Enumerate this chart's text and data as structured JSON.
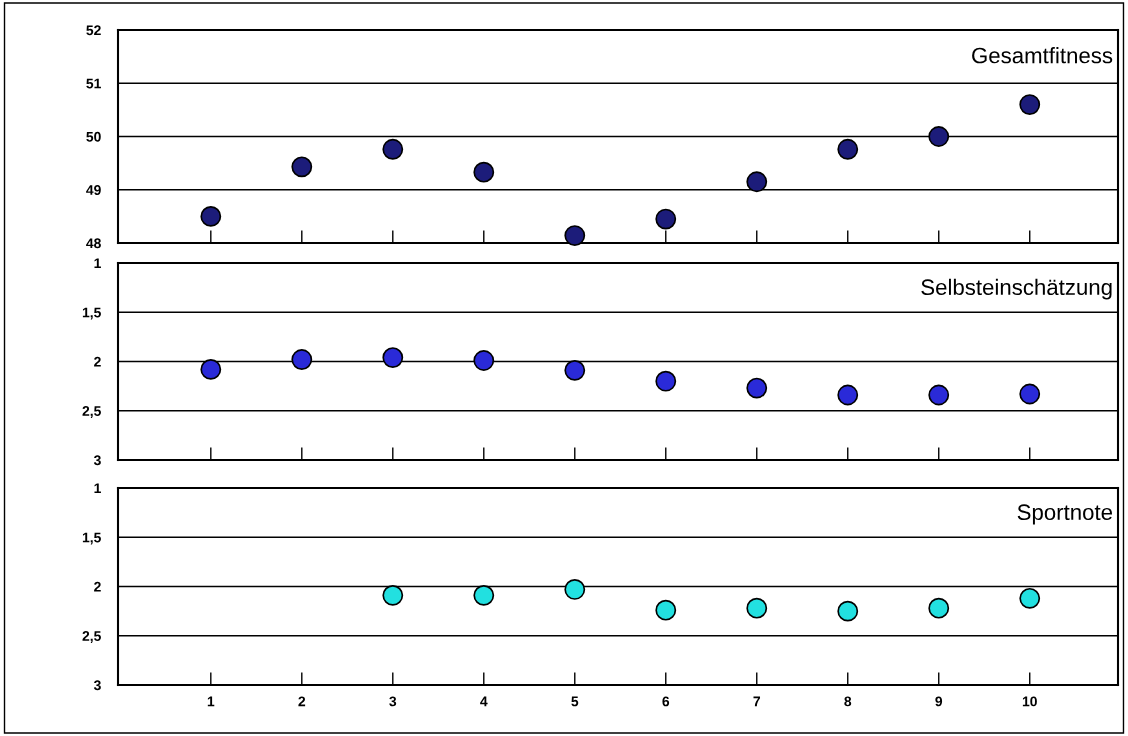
{
  "chart_data": [
    {
      "type": "scatter",
      "title": "Gesamtfitness",
      "categories": [
        "1",
        "2",
        "3",
        "4",
        "5",
        "6",
        "7",
        "8",
        "9",
        "10"
      ],
      "tick_labels": "y",
      "grid": "y",
      "marker": "circle",
      "series": [
        {
          "color": "#1c1c7a",
          "values": [
            48.5,
            49.43,
            49.76,
            49.33,
            48.14,
            48.45,
            49.15,
            49.76,
            50.0,
            50.6
          ]
        }
      ],
      "ylim": [
        48,
        52
      ],
      "yticks": [
        48,
        49,
        50,
        51,
        52
      ]
    },
    {
      "type": "scatter",
      "title": "Selbsteinschätzung",
      "categories": [
        "1",
        "2",
        "3",
        "4",
        "5",
        "6",
        "7",
        "8",
        "9",
        "10"
      ],
      "tick_labels": "y",
      "grid": "y",
      "marker": "circle",
      "series": [
        {
          "color": "#2a2ad8",
          "values": [
            2.08,
            1.98,
            1.96,
            1.99,
            2.09,
            2.2,
            2.27,
            2.34,
            2.34,
            2.33
          ]
        }
      ],
      "ylim": [
        3,
        1
      ],
      "yticks": [
        {
          "value": 3,
          "label": "3"
        },
        {
          "value": 2.5,
          "label": "2,5"
        },
        {
          "value": 2,
          "label": "2"
        },
        {
          "value": 1.5,
          "label": "1,5"
        },
        {
          "value": 1,
          "label": "1"
        }
      ]
    },
    {
      "type": "scatter",
      "title": "Sportnote",
      "categories": [
        "1",
        "2",
        "3",
        "4",
        "5",
        "6",
        "7",
        "8",
        "9",
        "10"
      ],
      "grid": "y",
      "marker": "circle",
      "series": [
        {
          "color": "#22e0e0",
          "values": [
            null,
            null,
            2.09,
            2.09,
            2.03,
            2.24,
            2.22,
            2.25,
            2.22,
            2.12
          ]
        }
      ],
      "ylim": [
        3,
        1
      ],
      "yticks": [
        {
          "value": 3,
          "label": "3"
        },
        {
          "value": 2.5,
          "label": "2,5"
        },
        {
          "value": 2,
          "label": "2"
        },
        {
          "value": 1.5,
          "label": "1,5"
        },
        {
          "value": 1,
          "label": "1"
        }
      ]
    }
  ]
}
